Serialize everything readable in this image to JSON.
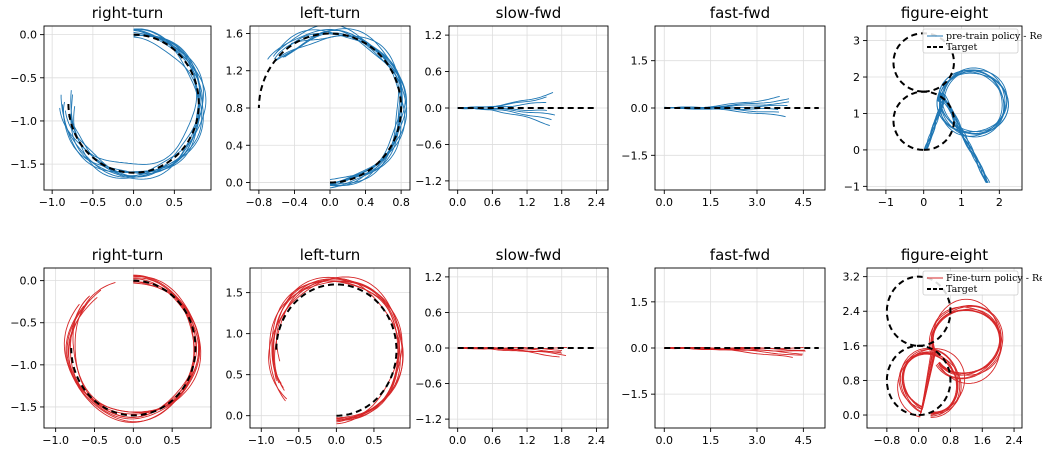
{
  "colors": {
    "pretrain": "#1f77b4",
    "finetune": "#d62728",
    "target": "#000000",
    "grid": "#dddddd"
  },
  "chart_data": [
    {
      "type": "line",
      "title": "right-turn",
      "xlabel": "",
      "ylabel": "",
      "grid": true,
      "xlim": [
        -1.1,
        0.95
      ],
      "ylim": [
        -1.8,
        0.1
      ],
      "xticks": [
        "−1.0",
        "−0.5",
        "0.0",
        "0.5"
      ],
      "xtick_values": [
        -1.0,
        -0.5,
        0.0,
        0.5
      ],
      "yticks": [
        "0.0",
        "−0.5",
        "−1.0",
        "−1.5"
      ],
      "ytick_values": [
        0.0,
        -0.5,
        -1.0,
        -1.5
      ],
      "series": [
        {
          "role": "policy",
          "color": "#1f77b4",
          "trajectory": "circle",
          "cx": 0.0,
          "cy": -0.8,
          "r": 0.8,
          "start_deg": 90,
          "sweep_deg": 290,
          "cw": true,
          "runs": 10,
          "noise": 0.09
        },
        {
          "role": "target",
          "trajectory": "circle",
          "cx": 0.0,
          "cy": -0.8,
          "r": 0.8,
          "start_deg": 90,
          "sweep_deg": 270,
          "cw": true
        }
      ]
    },
    {
      "type": "line",
      "title": "left-turn",
      "xlabel": "",
      "ylabel": "",
      "grid": true,
      "xlim": [
        -0.9,
        0.9
      ],
      "ylim": [
        -0.08,
        1.68
      ],
      "xticks": [
        "−0.8",
        "−0.4",
        "0.0",
        "0.4",
        "0.8"
      ],
      "xtick_values": [
        -0.8,
        -0.4,
        0.0,
        0.4,
        0.8
      ],
      "yticks": [
        "0.0",
        "0.4",
        "0.8",
        "1.2",
        "1.6"
      ],
      "ytick_values": [
        0.0,
        0.4,
        0.8,
        1.2,
        1.6
      ],
      "series": [
        {
          "role": "policy",
          "color": "#1f77b4",
          "trajectory": "circle",
          "cx": 0.0,
          "cy": 0.8,
          "r": 0.8,
          "start_deg": -90,
          "sweep_deg": 240,
          "cw": false,
          "runs": 10,
          "noise": 0.08
        },
        {
          "role": "target",
          "trajectory": "circle",
          "cx": 0.0,
          "cy": 0.8,
          "r": 0.8,
          "start_deg": -90,
          "sweep_deg": 270,
          "cw": false
        }
      ]
    },
    {
      "type": "line",
      "title": "slow-fwd",
      "xlabel": "",
      "ylabel": "",
      "grid": true,
      "xlim": [
        -0.15,
        2.6
      ],
      "ylim": [
        -1.35,
        1.35
      ],
      "xticks": [
        "0.0",
        "0.6",
        "1.2",
        "1.8",
        "2.4"
      ],
      "xtick_values": [
        0.0,
        0.6,
        1.2,
        1.8,
        2.4
      ],
      "yticks": [
        "1.2",
        "0.6",
        "0.0",
        "−0.6",
        "−1.2"
      ],
      "ytick_values": [
        1.2,
        0.6,
        0.0,
        -0.6,
        -1.2
      ],
      "series": [
        {
          "role": "policy",
          "color": "#1f77b4",
          "trajectory": "line",
          "x_end": 1.65,
          "end_spread": [
            0.25,
            0.18,
            0.1,
            -0.05,
            -0.12,
            -0.2,
            -0.28
          ],
          "runs": 7
        },
        {
          "role": "target",
          "trajectory": "line",
          "x_start": 0.0,
          "x_end": 2.4,
          "y": 0.0
        }
      ]
    },
    {
      "type": "line",
      "title": "fast-fwd",
      "xlabel": "",
      "ylabel": "",
      "grid": true,
      "xlim": [
        -0.3,
        5.2
      ],
      "ylim": [
        -2.6,
        2.6
      ],
      "xticks": [
        "0.0",
        "1.5",
        "3.0",
        "4.5"
      ],
      "xtick_values": [
        0.0,
        1.5,
        3.0,
        4.5
      ],
      "yticks": [
        "1.5",
        "0.0",
        "−1.5"
      ],
      "ytick_values": [
        1.5,
        0.0,
        -1.5
      ],
      "series": [
        {
          "role": "policy",
          "color": "#1f77b4",
          "trajectory": "line",
          "x_end": 4.0,
          "end_spread": [
            0.35,
            0.28,
            0.18,
            0.08,
            -0.05,
            -0.15,
            -0.28
          ],
          "runs": 7
        },
        {
          "role": "target",
          "trajectory": "line",
          "x_start": 0.0,
          "x_end": 5.0,
          "y": 0.0
        }
      ]
    },
    {
      "type": "line",
      "title": "figure-eight",
      "xlabel": "",
      "ylabel": "",
      "grid": true,
      "xlim": [
        -1.5,
        2.6
      ],
      "ylim": [
        -1.1,
        3.4
      ],
      "xticks": [
        "−1",
        "0",
        "1",
        "2"
      ],
      "xtick_values": [
        -1,
        0,
        1,
        2
      ],
      "yticks": [
        "3",
        "2",
        "1",
        "0",
        "−1"
      ],
      "ytick_values": [
        3,
        2,
        1,
        0,
        -1
      ],
      "legend": [
        "pre-train policy - Real",
        "Target"
      ],
      "legend_position": "top-right",
      "series": [
        {
          "role": "policy",
          "color": "#1f77b4",
          "trajectory": "eight-drift",
          "runs": 8,
          "center": [
            1.3,
            1.3
          ],
          "r": 0.85,
          "tail_end": [
            1.7,
            -0.9
          ]
        },
        {
          "role": "target",
          "trajectory": "eight",
          "cx": 0.0,
          "cy1": 0.8,
          "cy2": 2.4,
          "r": 0.8
        }
      ]
    },
    {
      "type": "line",
      "title": "right-turn",
      "xlabel": "",
      "ylabel": "",
      "grid": true,
      "xlim": [
        -1.15,
        1.0
      ],
      "ylim": [
        -1.75,
        0.15
      ],
      "xticks": [
        "−1.0",
        "−0.5",
        "0.0",
        "0.5"
      ],
      "xtick_values": [
        -1.0,
        -0.5,
        0.0,
        0.5
      ],
      "yticks": [
        "0.0",
        "−0.5",
        "−1.0",
        "−1.5"
      ],
      "ytick_values": [
        0.0,
        -0.5,
        -1.0,
        -1.5
      ],
      "series": [
        {
          "role": "policy",
          "color": "#d62728",
          "trajectory": "circle",
          "cx": 0.0,
          "cy": -0.8,
          "r": 0.82,
          "start_deg": 90,
          "sweep_deg": 345,
          "cw": true,
          "runs": 8,
          "noise": 0.06
        },
        {
          "role": "target",
          "trajectory": "circle",
          "cx": 0.0,
          "cy": -0.8,
          "r": 0.8,
          "start_deg": 90,
          "sweep_deg": 270,
          "cw": true
        }
      ]
    },
    {
      "type": "line",
      "title": "left-turn",
      "xlabel": "",
      "ylabel": "",
      "grid": true,
      "xlim": [
        -1.15,
        0.98
      ],
      "ylim": [
        -0.15,
        1.8
      ],
      "xticks": [
        "−1.0",
        "−0.5",
        "0.0",
        "0.5"
      ],
      "xtick_values": [
        -1.0,
        -0.5,
        0.0,
        0.5
      ],
      "yticks": [
        "0.0",
        "0.5",
        "1.0",
        "1.5"
      ],
      "ytick_values": [
        0.0,
        0.5,
        1.0,
        1.5
      ],
      "series": [
        {
          "role": "policy",
          "color": "#d62728",
          "trajectory": "circle",
          "cx": 0.0,
          "cy": 0.8,
          "r": 0.85,
          "start_deg": -90,
          "sweep_deg": 320,
          "cw": false,
          "runs": 8,
          "noise": 0.07
        },
        {
          "role": "target",
          "trajectory": "circle",
          "cx": 0.0,
          "cy": 0.8,
          "r": 0.8,
          "start_deg": -90,
          "sweep_deg": 270,
          "cw": false
        }
      ]
    },
    {
      "type": "line",
      "title": "slow-fwd",
      "xlabel": "",
      "ylabel": "",
      "grid": true,
      "xlim": [
        -0.15,
        2.6
      ],
      "ylim": [
        -1.35,
        1.35
      ],
      "xticks": [
        "0.0",
        "0.6",
        "1.2",
        "1.8",
        "2.4"
      ],
      "xtick_values": [
        0.0,
        0.6,
        1.2,
        1.8,
        2.4
      ],
      "yticks": [
        "1.2",
        "0.6",
        "0.0",
        "−0.6",
        "−1.2"
      ],
      "ytick_values": [
        1.2,
        0.6,
        0.0,
        -0.6,
        -1.2
      ],
      "series": [
        {
          "role": "policy",
          "color": "#d62728",
          "trajectory": "line",
          "x_end": 1.9,
          "end_spread": [
            0.0,
            -0.03,
            -0.06,
            -0.09,
            -0.12,
            -0.15
          ],
          "runs": 6
        },
        {
          "role": "target",
          "trajectory": "line",
          "x_start": 0.0,
          "x_end": 2.4,
          "y": 0.0
        }
      ]
    },
    {
      "type": "line",
      "title": "fast-fwd",
      "xlabel": "",
      "ylabel": "",
      "grid": true,
      "xlim": [
        -0.3,
        5.2
      ],
      "ylim": [
        -2.6,
        2.6
      ],
      "xticks": [
        "0.0",
        "1.5",
        "3.0",
        "4.5"
      ],
      "xtick_values": [
        0.0,
        1.5,
        3.0,
        4.5
      ],
      "yticks": [
        "1.5",
        "0.0",
        "−1.5"
      ],
      "ytick_values": [
        1.5,
        0.0,
        -1.5
      ],
      "series": [
        {
          "role": "policy",
          "color": "#d62728",
          "trajectory": "line",
          "x_end": 4.5,
          "end_spread": [
            0.0,
            -0.06,
            -0.12,
            -0.18,
            -0.25,
            -0.32
          ],
          "runs": 6
        },
        {
          "role": "target",
          "trajectory": "line",
          "x_start": 0.0,
          "x_end": 5.0,
          "y": 0.0
        }
      ]
    },
    {
      "type": "line",
      "title": "figure-eight",
      "xlabel": "",
      "ylabel": "",
      "grid": true,
      "xlim": [
        -1.3,
        2.6
      ],
      "ylim": [
        -0.3,
        3.4
      ],
      "xticks": [
        "−0.8",
        "0.0",
        "0.8",
        "1.6",
        "2.4"
      ],
      "xtick_values": [
        -0.8,
        0.0,
        0.8,
        1.6,
        2.4
      ],
      "yticks": [
        "3.2",
        "2.4",
        "1.6",
        "0.8",
        "0.0"
      ],
      "ytick_values": [
        3.2,
        2.4,
        1.6,
        0.8,
        0.0
      ],
      "legend": [
        "Fine-turn policy - Real",
        "Target"
      ],
      "legend_position": "top-right",
      "series": [
        {
          "role": "policy",
          "color": "#d62728",
          "trajectory": "eight-loops",
          "runs": 7,
          "loop_a": [
            0.3,
            0.75,
            0.72
          ],
          "loop_b": [
            1.2,
            1.7,
            0.85
          ]
        },
        {
          "role": "target",
          "trajectory": "eight",
          "cx": 0.0,
          "cy1": 0.8,
          "cy2": 2.4,
          "r": 0.8
        }
      ]
    }
  ]
}
